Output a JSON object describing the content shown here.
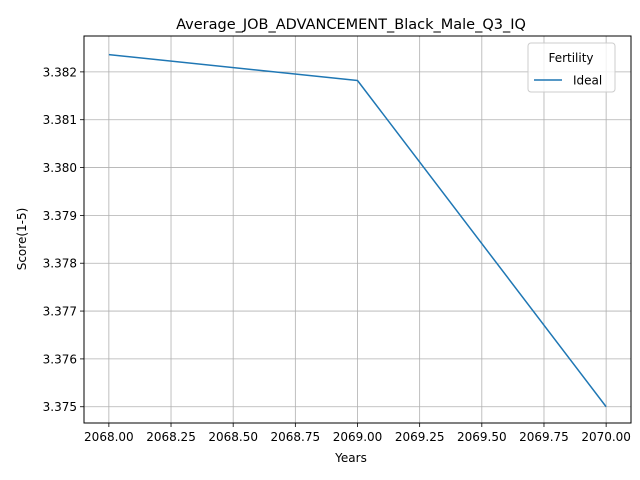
{
  "chart_data": {
    "type": "line",
    "title": "Average_JOB_ADVANCEMENT_Black_Male_Q3_IQ",
    "xlabel": "Years",
    "ylabel": "Score(1-5)",
    "x_ticks": [
      "2068.00",
      "2068.25",
      "2068.50",
      "2068.75",
      "2069.00",
      "2069.25",
      "2069.50",
      "2069.75",
      "2070.00"
    ],
    "y_ticks": [
      "3.375",
      "3.376",
      "3.377",
      "3.378",
      "3.379",
      "3.380",
      "3.381",
      "3.382"
    ],
    "xlim": [
      2067.9,
      2070.1
    ],
    "ylim": [
      3.37466,
      3.38275
    ],
    "grid": true,
    "legend": {
      "title": "Fertility",
      "position": "top-right"
    },
    "series": [
      {
        "name": "Ideal",
        "color": "#1f77b4",
        "x": [
          2068,
          2069,
          2070
        ],
        "y": [
          3.38236,
          3.38182,
          3.375
        ]
      }
    ]
  }
}
